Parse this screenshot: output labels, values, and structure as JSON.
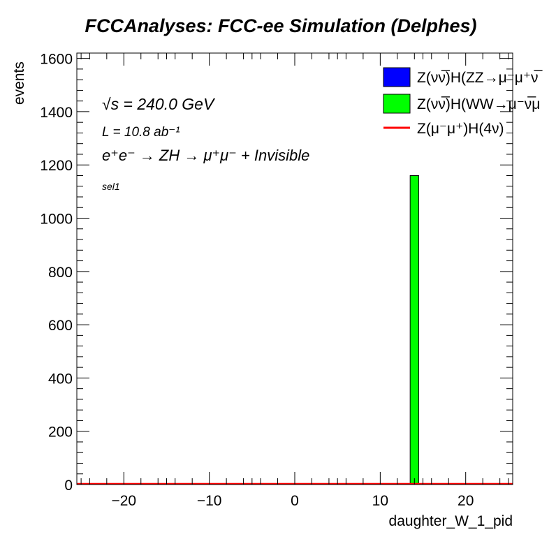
{
  "chart_data": {
    "type": "bar",
    "title": "FCCAnalyses: FCC-ee Simulation (Delphes)",
    "xlabel": "daughter_W_1_pid",
    "ylabel": "events",
    "xlim": [
      -25.5,
      25.5
    ],
    "ylim": [
      0,
      1620
    ],
    "x_ticks": [
      -20,
      -10,
      0,
      10,
      20
    ],
    "x_tick_labels": [
      "−20",
      "−10",
      "0",
      "10",
      "20"
    ],
    "y_ticks": [
      0,
      200,
      400,
      600,
      800,
      1000,
      1200,
      1400,
      1600
    ],
    "y_tick_labels": [
      "0",
      "200",
      "400",
      "600",
      "800",
      "1000",
      "1200",
      "1400",
      "1600"
    ],
    "bins": [
      {
        "x_low": 13.5,
        "x_high": 14.5,
        "value": 1160
      }
    ],
    "series": [
      {
        "name": "Z(νν̅)H(ZZ→μ⁻μ⁺νν̅)",
        "color": "#0000ff",
        "values": [
          0
        ]
      },
      {
        "name": "Z(νν̅)H(WW→μ⁻ν̅μ⁺ν)",
        "color": "#00ff00",
        "values": [
          1160
        ]
      },
      {
        "name": "Z(μ⁻μ⁺)H(4ν)",
        "color": "#ff0000",
        "values": [
          0
        ]
      }
    ],
    "legend": {
      "placement": "top-right",
      "entries": [
        {
          "label": "Z(νν̅)H(ZZ→μ⁻μ⁺ν̅",
          "color": "#0000ff",
          "style": "box"
        },
        {
          "label": "Z(νν̅)H(WW→μ⁻ν̅μ",
          "color": "#00ff00",
          "style": "box"
        },
        {
          "label": "Z(μ⁻μ⁺)H(4ν)",
          "color": "#ff0000",
          "style": "line"
        }
      ]
    },
    "annotations": {
      "sqrt_s": "√s = 240.0 GeV",
      "lumi": "L = 10.8 ab⁻¹",
      "process": "e⁺e⁻ → ZH → μ⁺μ⁻ + Invisible",
      "selection": "sel1"
    },
    "grid": false
  }
}
